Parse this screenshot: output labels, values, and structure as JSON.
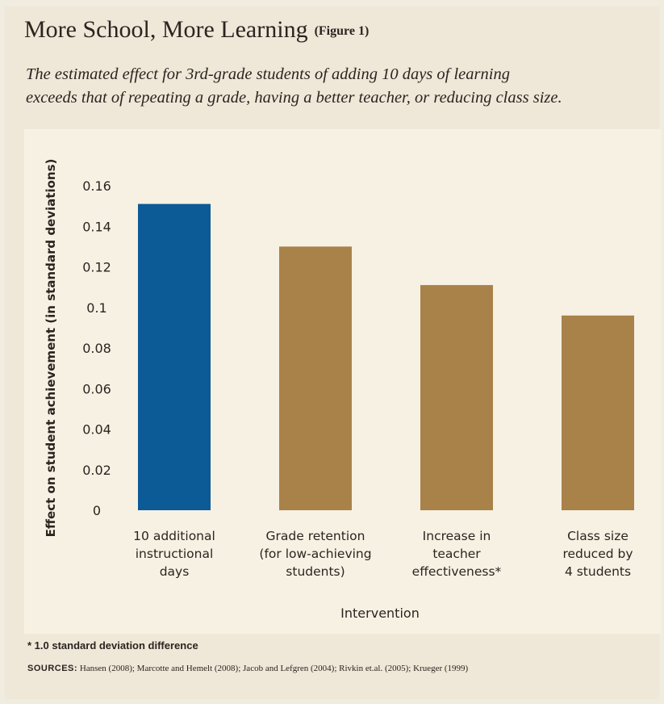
{
  "header": {
    "title": "More School, More Learning",
    "figure_tag": "(Figure 1)",
    "subtitle_line1": "The estimated effect for 3rd-grade students of adding 10 days of learning",
    "subtitle_line2": "exceeds that of repeating a grade, having a better teacher, or reducing class size."
  },
  "chart_data": {
    "type": "bar",
    "xlabel": "Intervention",
    "ylabel": "Effect on student achievement (in standard deviations)",
    "ylim": [
      0,
      0.16
    ],
    "yticks": [
      "0",
      "0.02",
      "0.04",
      "0.06",
      "0.08",
      "0.1",
      "0.12",
      "0.14",
      "0.16"
    ],
    "categories": [
      [
        "10 additional",
        "instructional",
        "days"
      ],
      [
        "Grade retention",
        "(for low-achieving",
        "students)"
      ],
      [
        "Increase in",
        "teacher",
        "effectiveness*"
      ],
      [
        "Class size",
        "reduced by",
        "4 students"
      ]
    ],
    "values": [
      0.151,
      0.13,
      0.111,
      0.096
    ],
    "colors": [
      "#0c5a96",
      "#a88249",
      "#a88249",
      "#a88249"
    ],
    "grid": false
  },
  "footnote": "* 1.0 standard deviation difference",
  "sources_label": "SOURCES:",
  "sources_text": "Hansen (2008); Marcotte and Hemelt (2008); Jacob and Lefgren (2004); Rivkin et.al. (2005); Krueger (1999)"
}
